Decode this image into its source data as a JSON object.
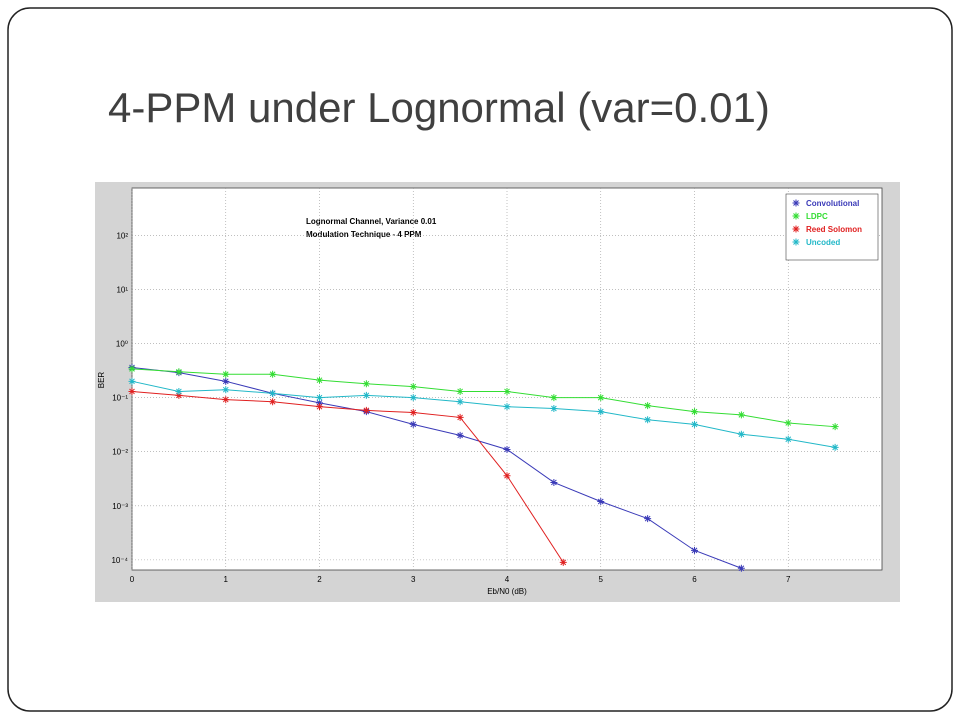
{
  "chart_data": {
    "type": "line",
    "title": "4-PPM under Lognormal (var=0.01)",
    "annotations": [
      "Lognormal Channel, Variance 0.01",
      "Modulation Technique - 4 PPM"
    ],
    "x_label": "Eb/N0 (dB)",
    "y_label": "BER",
    "xlim": [
      0,
      8
    ],
    "xticks": [
      0,
      1,
      2,
      3,
      4,
      5,
      6,
      7
    ],
    "ylim": [
      6.5e-05,
      750
    ],
    "log_y": true,
    "grid": true,
    "legend": "upper right",
    "yticks": [
      {
        "value": 0.0001,
        "label": "10⁻⁴"
      },
      {
        "value": 0.001,
        "label": "10⁻³"
      },
      {
        "value": 0.01,
        "label": "10⁻²"
      },
      {
        "value": 0.1,
        "label": "10⁻¹"
      },
      {
        "value": 1,
        "label": "10⁰"
      },
      {
        "value": 10,
        "label": "10¹"
      },
      {
        "value": 100,
        "label": "10²"
      }
    ],
    "series": [
      {
        "name": "Convolutional",
        "color": "#3a3ab8",
        "x": [
          0,
          0.5,
          1,
          1.5,
          2,
          2.5,
          3,
          3.5,
          4,
          4.5,
          5,
          5.5,
          6,
          6.5
        ],
        "values": [
          0.36,
          0.29,
          0.2,
          0.12,
          0.08,
          0.055,
          0.032,
          0.02,
          0.011,
          0.0027,
          0.0012,
          0.00058,
          0.00015,
          7e-05
        ]
      },
      {
        "name": "LDPC",
        "color": "#33dd33",
        "x": [
          0,
          0.5,
          1,
          1.5,
          2,
          2.5,
          3,
          3.5,
          4,
          4.5,
          5,
          5.5,
          6,
          6.5,
          7,
          7.5
        ],
        "values": [
          0.34,
          0.3,
          0.27,
          0.27,
          0.21,
          0.18,
          0.16,
          0.13,
          0.13,
          0.1,
          0.1,
          0.071,
          0.055,
          0.048,
          0.034,
          0.029
        ]
      },
      {
        "name": "Reed Solomon",
        "color": "#e02020",
        "x": [
          0,
          0.5,
          1,
          1.5,
          2,
          2.5,
          3,
          3.5,
          4,
          4.6
        ],
        "values": [
          0.13,
          0.11,
          0.092,
          0.084,
          0.068,
          0.058,
          0.053,
          0.043,
          0.0036,
          9e-05
        ]
      },
      {
        "name": "Uncoded",
        "color": "#22b8c8",
        "x": [
          0,
          0.5,
          1,
          1.5,
          2,
          2.5,
          3,
          3.5,
          4,
          4.5,
          5,
          5.5,
          6,
          6.5,
          7,
          7.5
        ],
        "values": [
          0.2,
          0.13,
          0.14,
          0.12,
          0.1,
          0.11,
          0.1,
          0.084,
          0.068,
          0.063,
          0.055,
          0.039,
          0.032,
          0.021,
          0.017,
          0.012
        ]
      }
    ]
  }
}
